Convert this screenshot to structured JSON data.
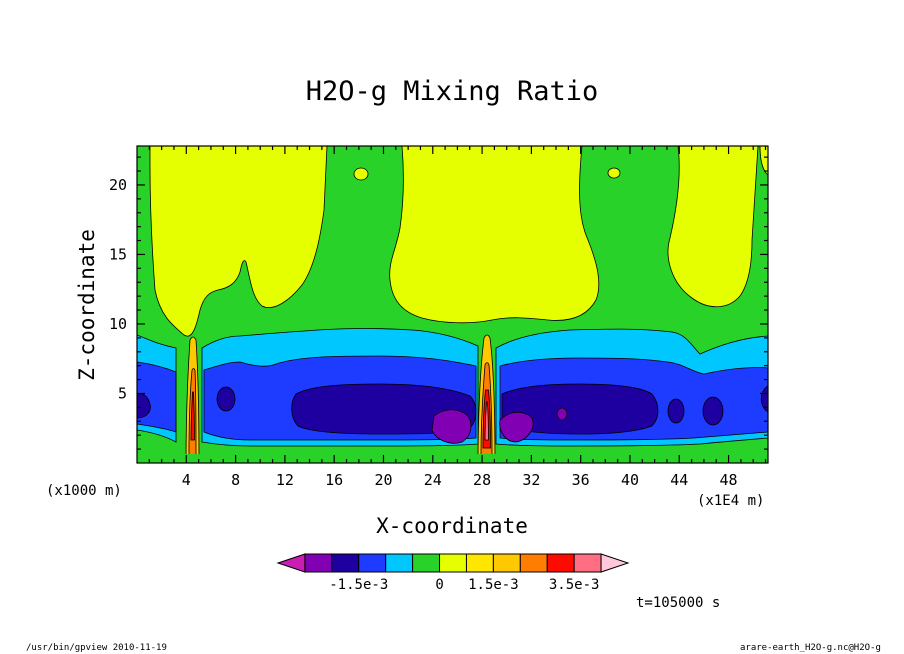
{
  "chart_data": {
    "type": "heatmap",
    "title": "H2O-g Mixing Ratio",
    "xlabel": "X-coordinate",
    "ylabel": "Z-coordinate",
    "x_unit_label": "(x1000 m)",
    "x_scale_label": "(x1E4 m)",
    "x_ticks": [
      "4",
      "8",
      "12",
      "16",
      "20",
      "24",
      "28",
      "32",
      "36",
      "40",
      "44",
      "48"
    ],
    "y_ticks": [
      "5",
      "10",
      "15",
      "20"
    ],
    "xlim": [
      0,
      51.2
    ],
    "ylim": [
      0,
      22.8
    ],
    "colorbar": {
      "levels": [
        "-1.5e-3",
        "0",
        "1.5e-3",
        "3.5e-3"
      ],
      "colors": [
        "#c81eb4",
        "#8200b4",
        "#1e00a0",
        "#1e3cff",
        "#00c8ff",
        "#28d228",
        "#e6ff00",
        "#ffe600",
        "#ffc800",
        "#ff7d00",
        "#ff0a00",
        "#ff6e82",
        "#ffc8dc"
      ]
    },
    "annotations": {
      "time": "t=105000 s",
      "footer_left": "/usr/bin/gpview  2010-11-19",
      "footer_right": "arare-earth_H2O-g.nc@H2O-g"
    }
  },
  "palette": {
    "magenta": "#c81eb4",
    "purple": "#8200b4",
    "navy": "#1e00a0",
    "blue": "#1e3cff",
    "cyan": "#00c8ff",
    "green": "#28d228",
    "yellow": "#e6ff00",
    "gold": "#ffe600",
    "amber": "#ffc800",
    "orange": "#ff7d00",
    "red": "#ff0a00",
    "pink": "#ff6e82",
    "lightpink": "#ffc8dc"
  }
}
